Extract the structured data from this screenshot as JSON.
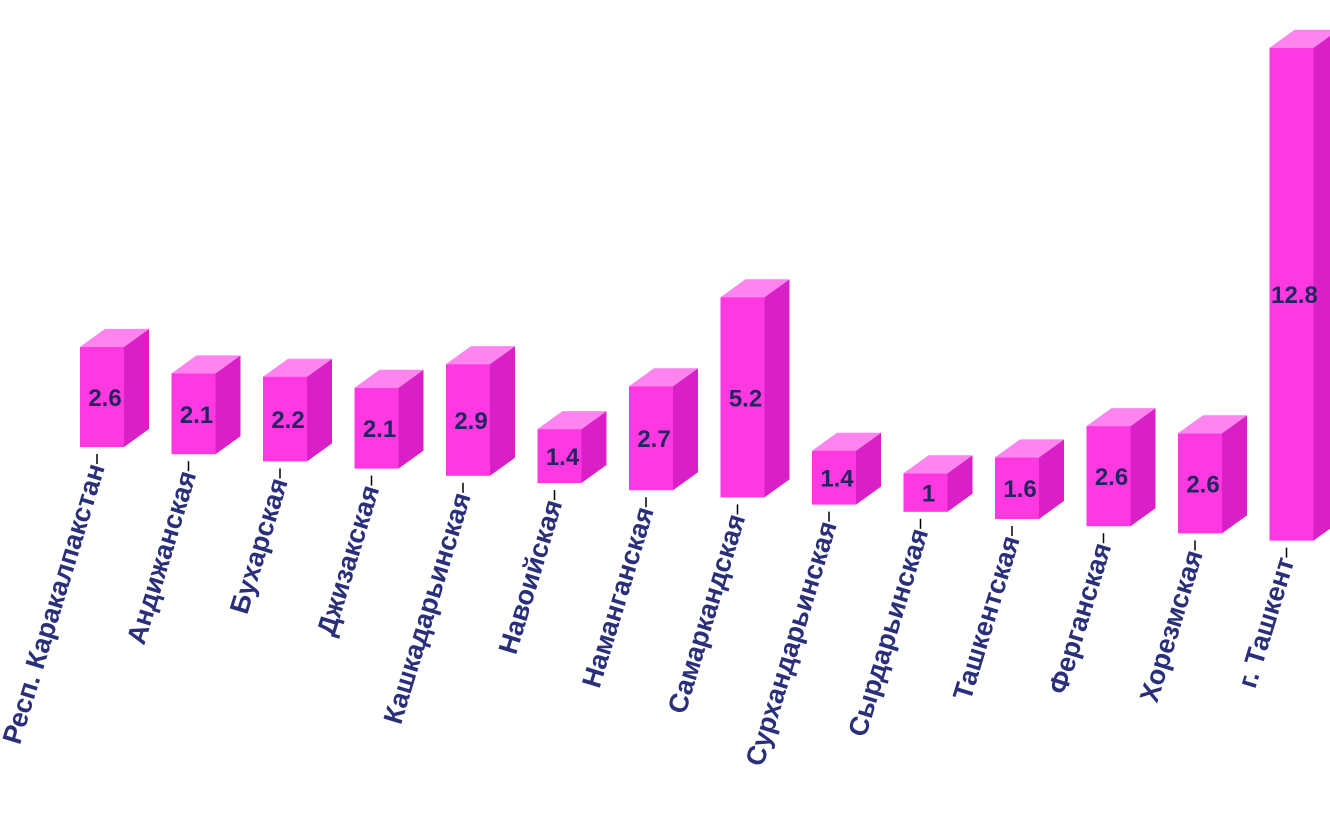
{
  "chart_data": {
    "type": "bar",
    "style": "3d",
    "categories": [
      "Респ. Каракалпакстан",
      "Андижанская",
      "Бухарская",
      "Джизакская",
      "Кашкадарьинская",
      "Навоийская",
      "Наманганская",
      "Самаркандская",
      "Сурхандарьинская",
      "Сырдарьинская",
      "Ташкентская",
      "Ферганская",
      "Хорезмская",
      "г. Ташкент"
    ],
    "values": [
      2.6,
      2.1,
      2.2,
      2.1,
      2.9,
      1.4,
      2.7,
      5.2,
      1.4,
      1,
      1.6,
      2.6,
      2.6,
      12.8
    ],
    "value_labels": [
      "2.6",
      "2.1",
      "2.2",
      "2.1",
      "2.9",
      "1.4",
      "2.7",
      "5.2",
      "1.4",
      "1",
      "1.6",
      "2.6",
      "2.6",
      "12.8"
    ],
    "title": "",
    "xlabel": "",
    "ylabel": "",
    "grid": false,
    "colors": {
      "bar_front": "#ff38e2",
      "bar_side": "#d820c6",
      "bar_top": "#ff84f0",
      "label_text": "#2a2f7a",
      "value_text": "#23255e"
    }
  }
}
